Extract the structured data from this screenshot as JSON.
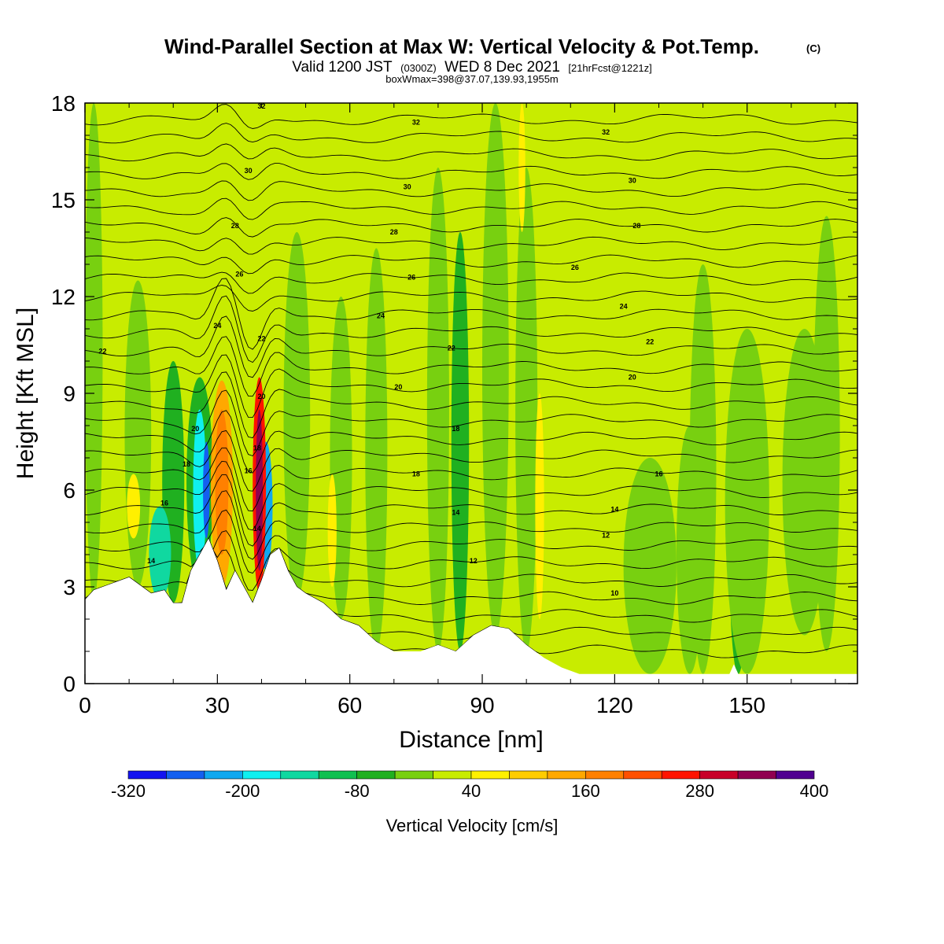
{
  "chart_data": {
    "type": "heatmap",
    "title": "Wind-Parallel Section at Max W: Vertical Velocity & Pot.Temp.",
    "copyright_mark": "(C)",
    "subtitle_main": "Valid 1200 JST",
    "subtitle_z": "(0300Z)",
    "subtitle_date": "WED 8 Dec 2021",
    "subtitle_fcst": "[21hrFcst@1221z]",
    "subtitle2": "boxWmax=398@37.07,139.93,1955m",
    "xlabel": "Distance [nm]",
    "ylabel": "Height [Kft MSL]",
    "xlim": [
      0,
      175
    ],
    "ylim": [
      0,
      18
    ],
    "xticks": [
      "0",
      "30",
      "60",
      "90",
      "120",
      "150"
    ],
    "xtick_values": [
      0,
      30,
      60,
      90,
      120,
      150
    ],
    "yticks": [
      "0",
      "3",
      "6",
      "9",
      "12",
      "15",
      "18"
    ],
    "ytick_values": [
      0,
      3,
      6,
      9,
      12,
      15,
      18
    ],
    "colorbar": {
      "title": "Vertical Velocity [cm/s]",
      "labels": [
        "-320",
        "-200",
        "-80",
        "40",
        "160",
        "280",
        "400"
      ],
      "colors": [
        "#1414f0",
        "#1460f0",
        "#10a8f0",
        "#10f0f0",
        "#10d8a0",
        "#10c050",
        "#20b020",
        "#78d010",
        "#c8ec00",
        "#fff000",
        "#ffcc00",
        "#ffa800",
        "#ff8000",
        "#ff5000",
        "#ff1400",
        "#c80028",
        "#900050",
        "#500090"
      ]
    },
    "background_color": "#c8ec00",
    "terrain_kft": [
      [
        0,
        2.6
      ],
      [
        2,
        2.9
      ],
      [
        6,
        3.1
      ],
      [
        10,
        3.3
      ],
      [
        13,
        3.0
      ],
      [
        15,
        2.8
      ],
      [
        18,
        2.9
      ],
      [
        20,
        2.5
      ],
      [
        22,
        2.5
      ],
      [
        24,
        3.5
      ],
      [
        26,
        4.0
      ],
      [
        28,
        4.5
      ],
      [
        30,
        3.8
      ],
      [
        32,
        2.9
      ],
      [
        34,
        3.5
      ],
      [
        36,
        3.0
      ],
      [
        38,
        2.5
      ],
      [
        40,
        3.2
      ],
      [
        42,
        4.0
      ],
      [
        44,
        4.2
      ],
      [
        46,
        3.5
      ],
      [
        48,
        3.0
      ],
      [
        50,
        2.8
      ],
      [
        54,
        2.5
      ],
      [
        58,
        2.0
      ],
      [
        62,
        1.8
      ],
      [
        66,
        1.3
      ],
      [
        70,
        1.0
      ],
      [
        76,
        1.0
      ],
      [
        80,
        1.2
      ],
      [
        84,
        1.0
      ],
      [
        88,
        1.5
      ],
      [
        92,
        1.8
      ],
      [
        96,
        1.7
      ],
      [
        100,
        1.2
      ],
      [
        104,
        0.8
      ],
      [
        108,
        0.5
      ],
      [
        112,
        0.3
      ],
      [
        116,
        0.3
      ],
      [
        120,
        0.3
      ],
      [
        140,
        0.3
      ],
      [
        146,
        0.3
      ],
      [
        147,
        0.6
      ],
      [
        148,
        0.3
      ],
      [
        175,
        0.3
      ]
    ],
    "contour_label_values": [
      "10",
      "12",
      "14",
      "16",
      "18",
      "20",
      "22",
      "24",
      "26",
      "28",
      "30",
      "32"
    ],
    "contour_labels": [
      {
        "x": 75,
        "y": 17.4,
        "v": "32"
      },
      {
        "x": 40,
        "y": 17.9,
        "v": "32"
      },
      {
        "x": 118,
        "y": 17.1,
        "v": "32"
      },
      {
        "x": 37,
        "y": 15.9,
        "v": "30"
      },
      {
        "x": 73,
        "y": 15.4,
        "v": "30"
      },
      {
        "x": 124,
        "y": 15.6,
        "v": "30"
      },
      {
        "x": 34,
        "y": 14.2,
        "v": "28"
      },
      {
        "x": 70,
        "y": 14.0,
        "v": "28"
      },
      {
        "x": 125,
        "y": 14.2,
        "v": "28"
      },
      {
        "x": 35,
        "y": 12.7,
        "v": "26"
      },
      {
        "x": 74,
        "y": 12.6,
        "v": "26"
      },
      {
        "x": 111,
        "y": 12.9,
        "v": "26"
      },
      {
        "x": 30,
        "y": 11.1,
        "v": "24"
      },
      {
        "x": 67,
        "y": 11.4,
        "v": "24"
      },
      {
        "x": 122,
        "y": 11.7,
        "v": "24"
      },
      {
        "x": 4,
        "y": 10.3,
        "v": "22"
      },
      {
        "x": 40,
        "y": 10.7,
        "v": "22"
      },
      {
        "x": 83,
        "y": 10.4,
        "v": "22"
      },
      {
        "x": 128,
        "y": 10.6,
        "v": "22"
      },
      {
        "x": 25,
        "y": 7.9,
        "v": "20"
      },
      {
        "x": 40,
        "y": 8.9,
        "v": "20"
      },
      {
        "x": 71,
        "y": 9.2,
        "v": "20"
      },
      {
        "x": 124,
        "y": 9.5,
        "v": "20"
      },
      {
        "x": 23,
        "y": 6.8,
        "v": "18"
      },
      {
        "x": 39,
        "y": 7.3,
        "v": "18"
      },
      {
        "x": 75,
        "y": 6.5,
        "v": "18"
      },
      {
        "x": 84,
        "y": 7.9,
        "v": "18"
      },
      {
        "x": 18,
        "y": 5.6,
        "v": "16"
      },
      {
        "x": 37,
        "y": 6.6,
        "v": "16"
      },
      {
        "x": 130,
        "y": 6.5,
        "v": "16"
      },
      {
        "x": 15,
        "y": 3.8,
        "v": "14"
      },
      {
        "x": 39,
        "y": 4.8,
        "v": "14"
      },
      {
        "x": 84,
        "y": 5.3,
        "v": "14"
      },
      {
        "x": 120,
        "y": 5.4,
        "v": "14"
      },
      {
        "x": 88,
        "y": 3.8,
        "v": "12"
      },
      {
        "x": 118,
        "y": 4.6,
        "v": "12"
      },
      {
        "x": 120,
        "y": 2.8,
        "v": "10"
      }
    ]
  }
}
